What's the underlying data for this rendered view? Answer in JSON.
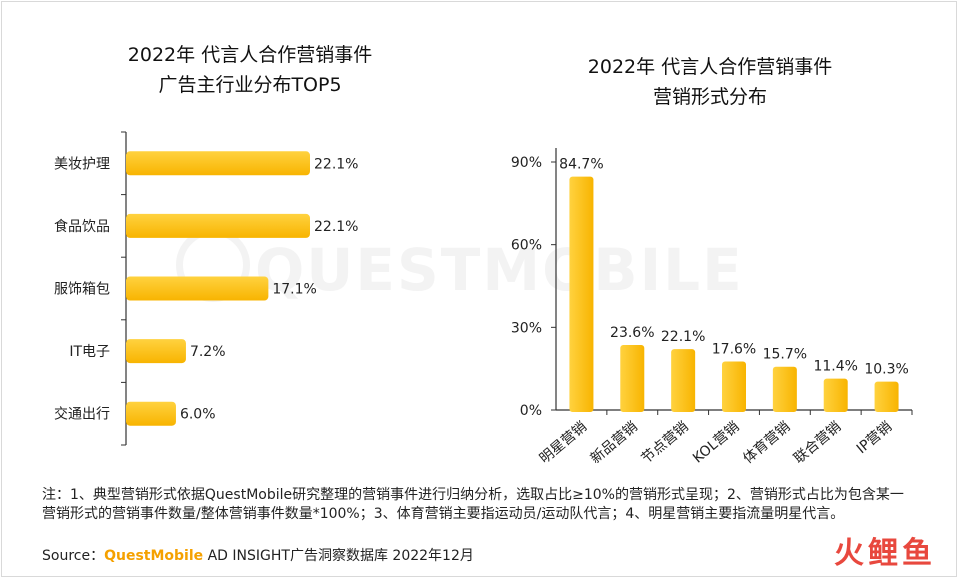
{
  "chart_data": [
    {
      "type": "bar",
      "orientation": "horizontal",
      "title_line1": "2022年 代言人合作营销事件",
      "title_line2": "广告主行业分布TOP5",
      "categories": [
        "美妆护理",
        "食品饮品",
        "服饰箱包",
        "IT电子",
        "交通出行"
      ],
      "values": [
        22.1,
        22.1,
        17.1,
        7.2,
        6.0
      ],
      "value_labels": [
        "22.1%",
        "22.1%",
        "17.1%",
        "7.2%",
        "6.0%"
      ],
      "grid": false
    },
    {
      "type": "bar",
      "orientation": "vertical",
      "title_line1": "2022年 代言人合作营销事件",
      "title_line2": "营销形式分布",
      "categories": [
        "明星营销",
        "新品营销",
        "节点营销",
        "KOL营销",
        "体育营销",
        "联合营销",
        "IP营销"
      ],
      "values": [
        84.7,
        23.6,
        22.1,
        17.6,
        15.7,
        11.4,
        10.3
      ],
      "value_labels": [
        "84.7%",
        "23.6%",
        "22.1%",
        "17.6%",
        "15.7%",
        "11.4%",
        "10.3%"
      ],
      "y_ticks": [
        "0%",
        "30%",
        "60%",
        "90%"
      ],
      "ylim": [
        0,
        90
      ],
      "grid": false
    }
  ],
  "watermark": "QUESTMOBILE",
  "note": "注：1、典型营销形式依据QuestMobile研究整理的营销事件进行归纳分析，选取占比≥10%的营销形式呈现；2、营销形式占比为包含某一营销形式的营销事件数量/整体营销事件数量*100%；3、体育营销主要指运动员/运动队代言；4、明星营销主要指流量明星代言。",
  "source": {
    "prefix": "Source：",
    "brand": "QuestMobile",
    "rest": " AD INSIGHT广告洞察数据库 2022年12月"
  },
  "logo": [
    "火",
    "鲤",
    "鱼"
  ],
  "colors": {
    "bar_top": "#ffd23f",
    "bar_bottom": "#f8b400",
    "axis": "#333333",
    "brand": "#f5a100"
  }
}
